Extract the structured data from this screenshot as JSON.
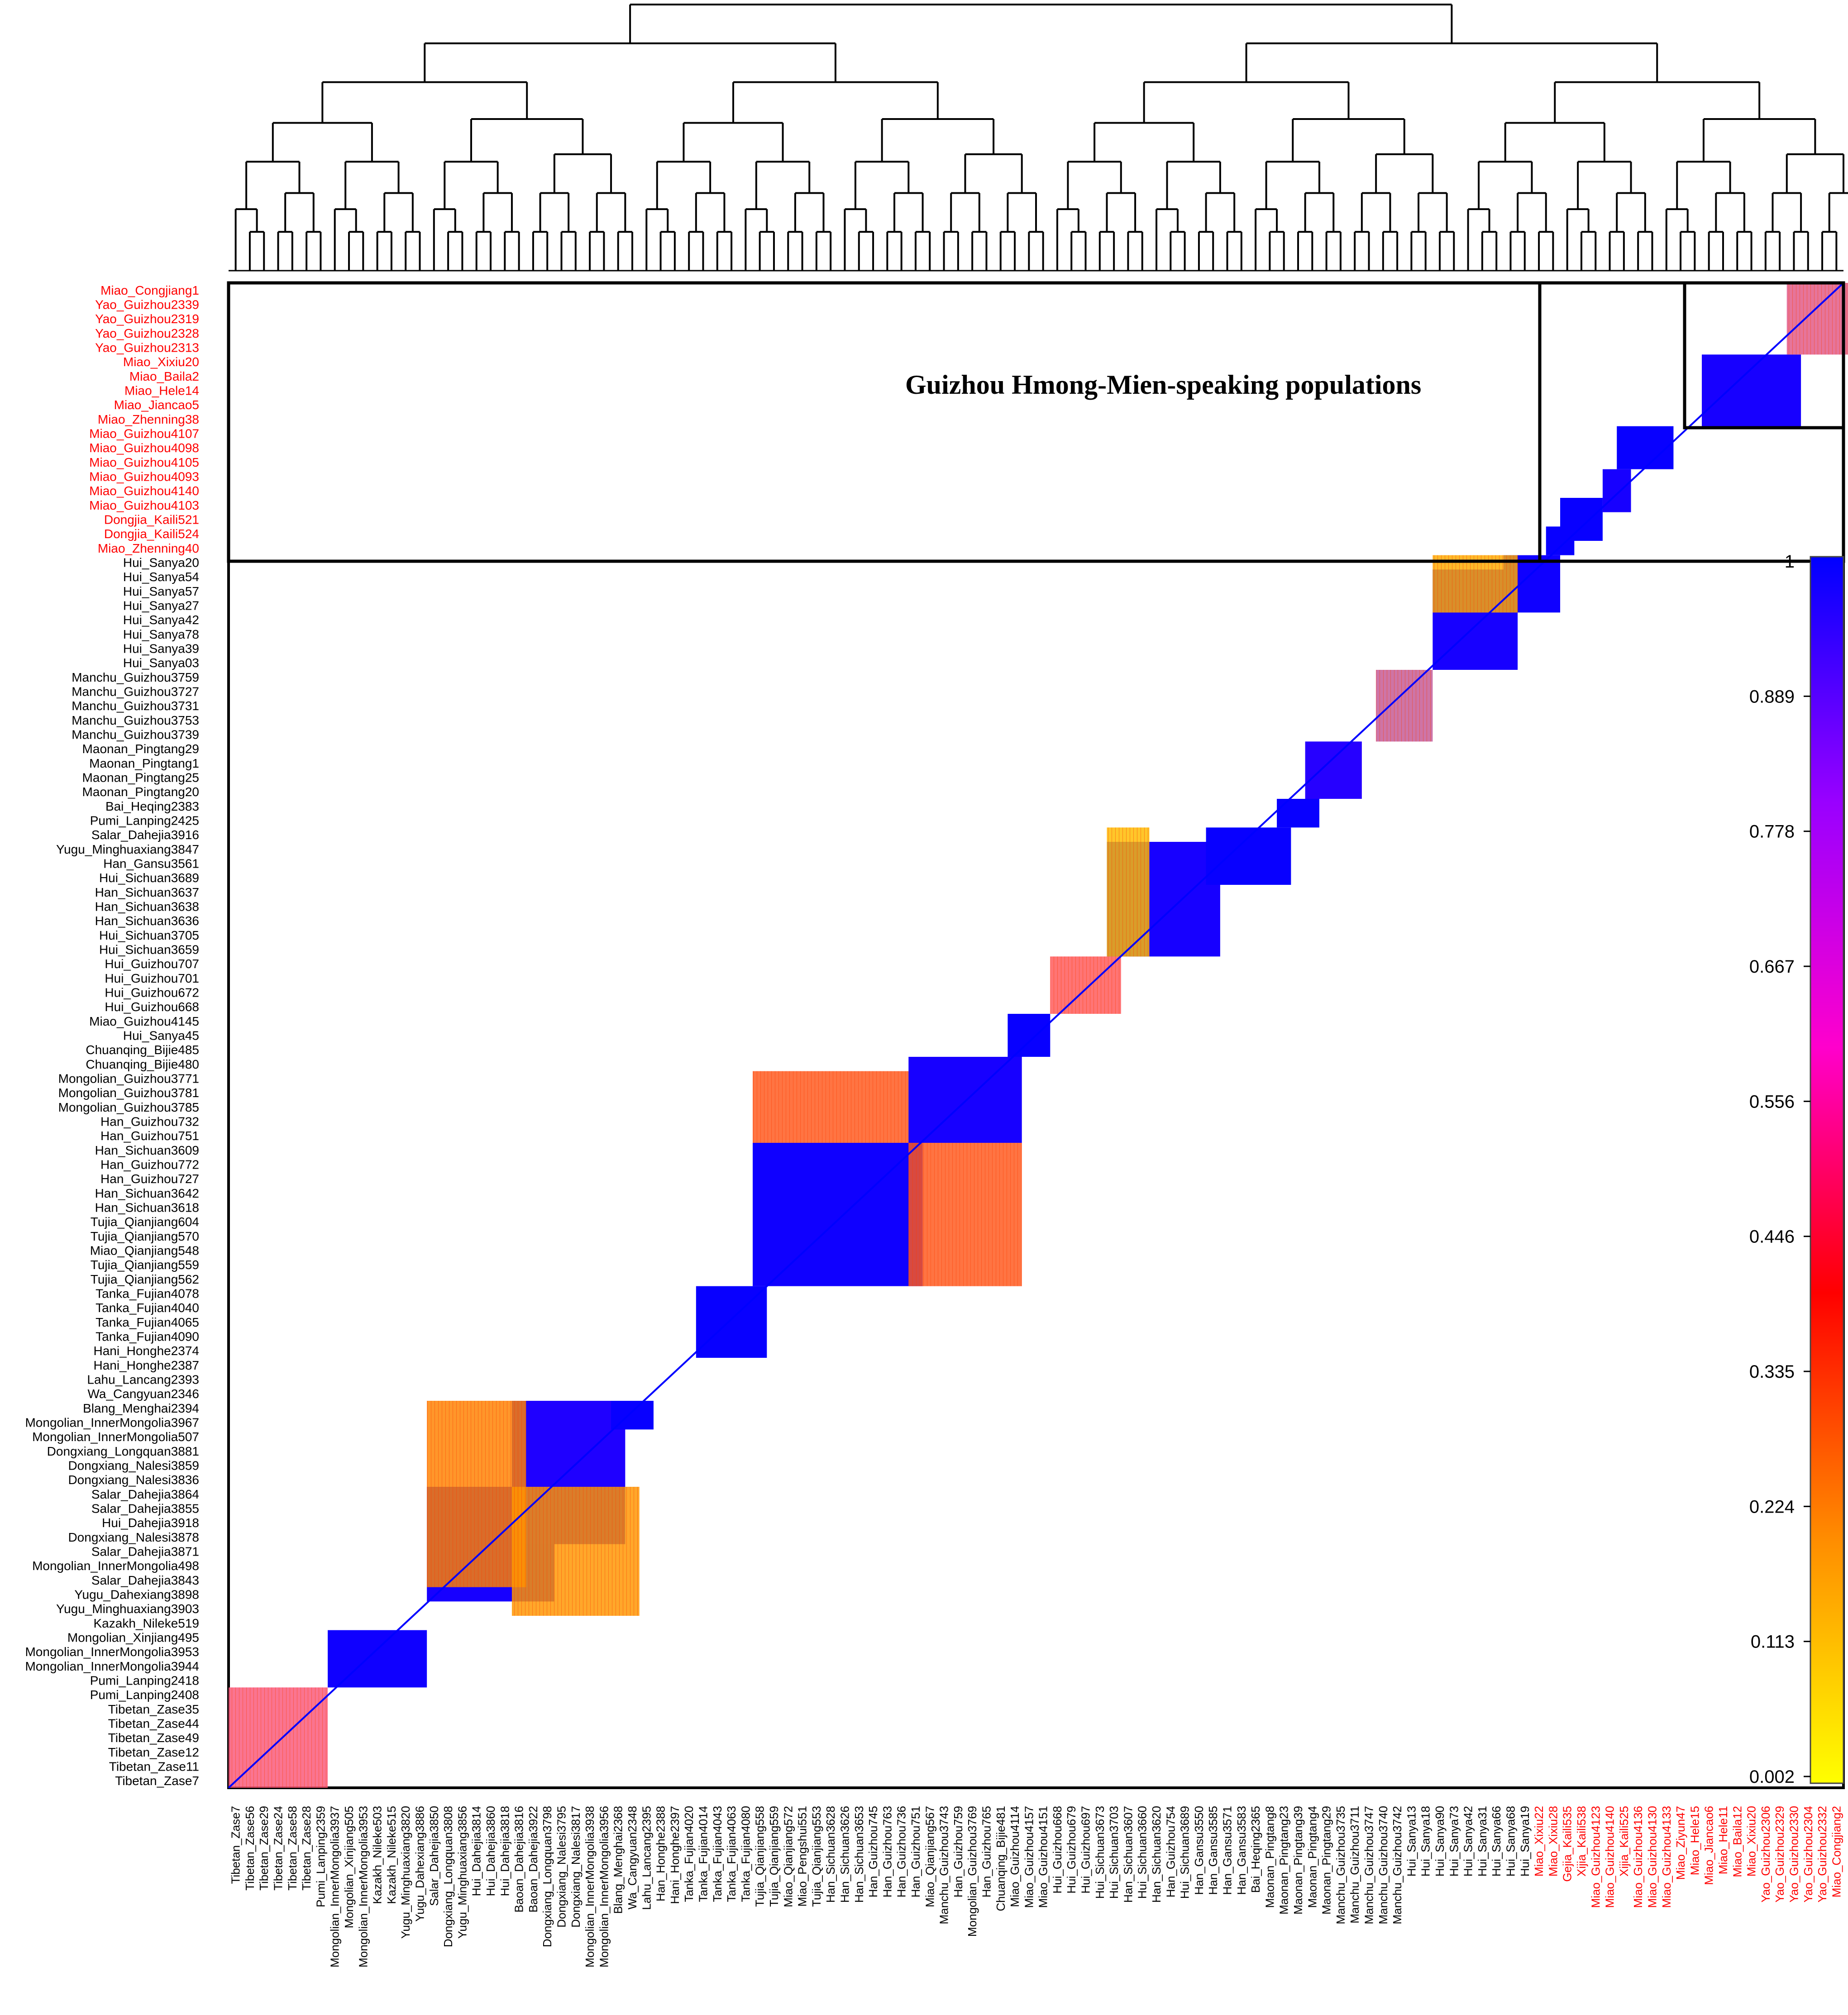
{
  "chart_data": {
    "type": "heatmap",
    "title": "",
    "xlabel": "",
    "ylabel": "",
    "annotation": "Guizhou Hmong-Mien-speaking populations",
    "colorbar": {
      "ticks": [
        "1",
        "0.889",
        "0.778",
        "0.667",
        "0.556",
        "0.446",
        "0.335",
        "0.224",
        "0.113",
        "0.002"
      ],
      "range": [
        0.002,
        1
      ],
      "colors": [
        "#0000ff",
        "#9900ff",
        "#ff00cc",
        "#ff0000",
        "#ff8c00",
        "#ffff00"
      ]
    },
    "highlight_color": "#ff0000",
    "row_labels": [
      "Miao_Congjiang1",
      "Yao_Guizhou2339",
      "Yao_Guizhou2319",
      "Yao_Guizhou2328",
      "Yao_Guizhou2313",
      "Miao_Xixiu20",
      "Miao_Baila2",
      "Miao_Hele14",
      "Miao_Jiancao5",
      "Miao_Zhenning38",
      "Miao_Guizhou4107",
      "Miao_Guizhou4098",
      "Miao_Guizhou4105",
      "Miao_Guizhou4093",
      "Miao_Guizhou4140",
      "Miao_Guizhou4103",
      "Dongjia_Kaili521",
      "Dongjia_Kaili524",
      "Miao_Zhenning40",
      "Hui_Sanya20",
      "Hui_Sanya54",
      "Hui_Sanya57",
      "Hui_Sanya27",
      "Hui_Sanya42",
      "Hui_Sanya78",
      "Hui_Sanya39",
      "Hui_Sanya03",
      "Manchu_Guizhou3759",
      "Manchu_Guizhou3727",
      "Manchu_Guizhou3731",
      "Manchu_Guizhou3753",
      "Manchu_Guizhou3739",
      "Maonan_Pingtang29",
      "Maonan_Pingtang1",
      "Maonan_Pingtang25",
      "Maonan_Pingtang20",
      "Bai_Heqing2383",
      "Pumi_Lanping2425",
      "Salar_Dahejia3916",
      "Yugu_Minghuaxiang3847",
      "Han_Gansu3561",
      "Hui_Sichuan3689",
      "Han_Sichuan3637",
      "Han_Sichuan3638",
      "Han_Sichuan3636",
      "Hui_Sichuan3705",
      "Hui_Sichuan3659",
      "Hui_Guizhou707",
      "Hui_Guizhou701",
      "Hui_Guizhou672",
      "Hui_Guizhou668",
      "Miao_Guizhou4145",
      "Hui_Sanya45",
      "Chuanqing_Bijie485",
      "Chuanqing_Bijie480",
      "Mongolian_Guizhou3771",
      "Mongolian_Guizhou3781",
      "Mongolian_Guizhou3785",
      "Han_Guizhou732",
      "Han_Guizhou751",
      "Han_Sichuan3609",
      "Han_Guizhou772",
      "Han_Guizhou727",
      "Han_Sichuan3642",
      "Han_Sichuan3618",
      "Tujia_Qianjiang604",
      "Tujia_Qianjiang570",
      "Miao_Qianjiang548",
      "Tujia_Qianjiang559",
      "Tujia_Qianjiang562",
      "Tanka_Fujian4078",
      "Tanka_Fujian4040",
      "Tanka_Fujian4065",
      "Tanka_Fujian4090",
      "Hani_Honghe2374",
      "Hani_Honghe2387",
      "Lahu_Lancang2393",
      "Wa_Cangyuan2346",
      "Blang_Menghai2394",
      "Mongolian_InnerMongolia3967",
      "Mongolian_InnerMongolia507",
      "Dongxiang_Longquan3881",
      "Dongxiang_Nalesi3859",
      "Dongxiang_Nalesi3836",
      "Salar_Dahejia3864",
      "Salar_Dahejia3855",
      "Hui_Dahejia3918",
      "Dongxiang_Nalesi3878",
      "Salar_Dahejia3871",
      "Mongolian_InnerMongolia498",
      "Salar_Dahejia3843",
      "Yugu_Dahexiang3898",
      "Yugu_Minghuaxiang3903",
      "Kazakh_Nileke519",
      "Mongolian_Xinjiang495",
      "Mongolian_InnerMongolia3953",
      "Mongolian_InnerMongolia3944",
      "Pumi_Lanping2418",
      "Pumi_Lanping2408",
      "Tibetan_Zase35",
      "Tibetan_Zase44",
      "Tibetan_Zase49",
      "Tibetan_Zase12",
      "Tibetan_Zase11",
      "Tibetan_Zase7"
    ],
    "row_highlight_count": 19,
    "col_labels": [
      "Tibetan_Zase7",
      "Tibetan_Zase56",
      "Tibetan_Zase29",
      "Tibetan_Zase24",
      "Tibetan_Zase58",
      "Tibetan_Zase28",
      "Pumi_Lanping2359",
      "Mongolian_InnerMongolia3937",
      "Mongolian_Xinjiang505",
      "Mongolian_InnerMongolia3953",
      "Kazakh_Nileke503",
      "Kazakh_Nileke515",
      "Yugu_Minghuaxiang3820",
      "Yugu_Dahexiang3886",
      "Salar_Dahejia3850",
      "Dongxiang_Longquan3808",
      "Yugu_Minghuaxiang3856",
      "Hui_Dahejia3814",
      "Hui_Dahejia3860",
      "Hui_Dahejia3818",
      "Baoan_Dahejia3816",
      "Baoan_Dahejia3922",
      "Dongxiang_Longquan3798",
      "Dongxiang_Nalesi3795",
      "Dongxiang_Nalesi3817",
      "Mongolian_InnerMongolia3938",
      "Mongolian_InnerMongolia3956",
      "Blang_Menghai2368",
      "Wa_Cangyuan2348",
      "Lahu_Lancang2395",
      "Han_Honghe2388",
      "Hani_Honghe2397",
      "Tanka_Fujian4020",
      "Tanka_Fujian4014",
      "Tanka_Fujian4043",
      "Tanka_Fujian4063",
      "Tanka_Fujian4080",
      "Tujia_Qianjiang558",
      "Tujia_Qianjiang559",
      "Miao_Qianjiang572",
      "Miao_Pengshui551",
      "Tujia_Qianjiang553",
      "Han_Sichuan3628",
      "Han_Sichuan3626",
      "Han_Sichuan3653",
      "Han_Guizhou745",
      "Han_Guizhou763",
      "Han_Guizhou736",
      "Han_Guizhou751",
      "Miao_Qianjiang567",
      "Manchu_Guizhou3743",
      "Han_Guizhou759",
      "Mongolian_Guizhou3769",
      "Han_Guizhou765",
      "Chuanqing_Bijie481",
      "Miao_Guizhou4114",
      "Miao_Guizhou4157",
      "Miao_Guizhou4151",
      "Hui_Guizhou668",
      "Hui_Guizhou679",
      "Hui_Guizhou697",
      "Hui_Sichuan3673",
      "Hui_Sichuan3703",
      "Han_Sichuan3607",
      "Hui_Sichuan3660",
      "Han_Sichuan3620",
      "Han_Guizhou754",
      "Hui_Sichuan3689",
      "Han_Gansu3550",
      "Han_Gansu3585",
      "Han_Gansu3571",
      "Han_Gansu3583",
      "Bai_Heqing2365",
      "Maonan_Pingtang8",
      "Maonan_Pingtang23",
      "Maonan_Pingtang39",
      "Maonan_Pingtang4",
      "Maonan_Pingtang29",
      "Manchu_Guizhou3735",
      "Manchu_Guizhou3711",
      "Manchu_Guizhou3747",
      "Manchu_Guizhou3740",
      "Manchu_Guizhou3742",
      "Hui_Sanya13",
      "Hui_Sanya18",
      "Hui_Sanya90",
      "Hui_Sanya73",
      "Hui_Sanya42",
      "Hui_Sanya31",
      "Hui_Sanya66",
      "Hui_Sanya68",
      "Hui_Sanya19",
      "Miao_Xixiu22",
      "Miao_Xixiu28",
      "Gejia_Kaili535",
      "Xijia_Kaili538",
      "Miao_Guizhou4123",
      "Miao_Guizhou4140",
      "Xijia_Kaili525",
      "Miao_Guizhou4136",
      "Miao_Guizhou4130",
      "Miao_Guizhou4133",
      "Miao_Ziyun47",
      "Miao_Hele15",
      "Miao_Jiancao6",
      "Miao_Hele11",
      "Miao_Baila12",
      "Miao_Xixiu20",
      "Yao_Guizhou2306",
      "Yao_Guizhou2329",
      "Yao_Guizhou2330",
      "Yao_Guizhou2304",
      "Yao_Guizhou2332",
      "Miao_Congjiang2"
    ],
    "col_highlight_from": 92,
    "blocks": [
      {
        "rows": [
          98,
          104
        ],
        "cols": [
          0,
          6
        ],
        "value": 0.62,
        "pattern": "hatch"
      },
      {
        "rows": [
          94,
          97
        ],
        "cols": [
          7,
          13
        ],
        "value": 0.98
      },
      {
        "rows": [
          84,
          91
        ],
        "cols": [
          14,
          22
        ],
        "value": 0.97
      },
      {
        "rows": [
          78,
          87
        ],
        "cols": [
          20,
          27
        ],
        "value": 0.96
      },
      {
        "rows": [
          78,
          90
        ],
        "cols": [
          14,
          20
        ],
        "value": 0.3,
        "pattern": "hatch"
      },
      {
        "rows": [
          84,
          92
        ],
        "cols": [
          20,
          28
        ],
        "value": 0.25,
        "pattern": "hatch"
      },
      {
        "rows": [
          78,
          79
        ],
        "cols": [
          27,
          29
        ],
        "value": 0.99
      },
      {
        "rows": [
          70,
          74
        ],
        "cols": [
          33,
          37
        ],
        "value": 0.99
      },
      {
        "rows": [
          60,
          69
        ],
        "cols": [
          37,
          48
        ],
        "value": 0.98
      },
      {
        "rows": [
          55,
          59
        ],
        "cols": [
          37,
          48
        ],
        "value": 0.45,
        "pattern": "hatch"
      },
      {
        "rows": [
          60,
          69
        ],
        "cols": [
          48,
          55
        ],
        "value": 0.45,
        "pattern": "hatch"
      },
      {
        "rows": [
          54,
          59
        ],
        "cols": [
          48,
          55
        ],
        "value": 0.97
      },
      {
        "rows": [
          51,
          53
        ],
        "cols": [
          55,
          57
        ],
        "value": 0.99
      },
      {
        "rows": [
          47,
          50
        ],
        "cols": [
          58,
          62
        ],
        "value": 0.55,
        "pattern": "hatch"
      },
      {
        "rows": [
          39,
          46
        ],
        "cols": [
          62,
          69
        ],
        "value": 0.97
      },
      {
        "rows": [
          38,
          41
        ],
        "cols": [
          69,
          74
        ],
        "value": 0.99
      },
      {
        "rows": [
          38,
          46
        ],
        "cols": [
          62,
          64
        ],
        "value": 0.15,
        "pattern": "hatch"
      },
      {
        "rows": [
          36,
          37
        ],
        "cols": [
          74,
          76
        ],
        "value": 0.99
      },
      {
        "rows": [
          32,
          35
        ],
        "cols": [
          76,
          79
        ],
        "value": 0.95
      },
      {
        "rows": [
          27,
          31
        ],
        "cols": [
          81,
          84
        ],
        "value": 0.8,
        "pattern": "hatch"
      },
      {
        "rows": [
          20,
          26
        ],
        "cols": [
          85,
          90
        ],
        "value": 0.97
      },
      {
        "rows": [
          19,
          22
        ],
        "cols": [
          90,
          93
        ],
        "value": 0.98
      },
      {
        "rows": [
          19,
          22
        ],
        "cols": [
          85,
          90
        ],
        "value": 0.2,
        "pattern": "hatch"
      },
      {
        "rows": [
          17,
          18
        ],
        "cols": [
          93,
          94
        ],
        "value": 0.99
      },
      {
        "rows": [
          15,
          17
        ],
        "cols": [
          94,
          96
        ],
        "value": 0.99
      },
      {
        "rows": [
          13,
          15
        ],
        "cols": [
          97,
          98
        ],
        "value": 0.97
      },
      {
        "rows": [
          10,
          12
        ],
        "cols": [
          98,
          101
        ],
        "value": 0.99
      },
      {
        "rows": [
          5,
          9
        ],
        "cols": [
          104,
          110
        ],
        "value": 0.97
      },
      {
        "rows": [
          0,
          4
        ],
        "cols": [
          110,
          115
        ],
        "value": 0.7,
        "pattern": "hatch"
      }
    ],
    "dendrogram_leaf_count": 116
  }
}
